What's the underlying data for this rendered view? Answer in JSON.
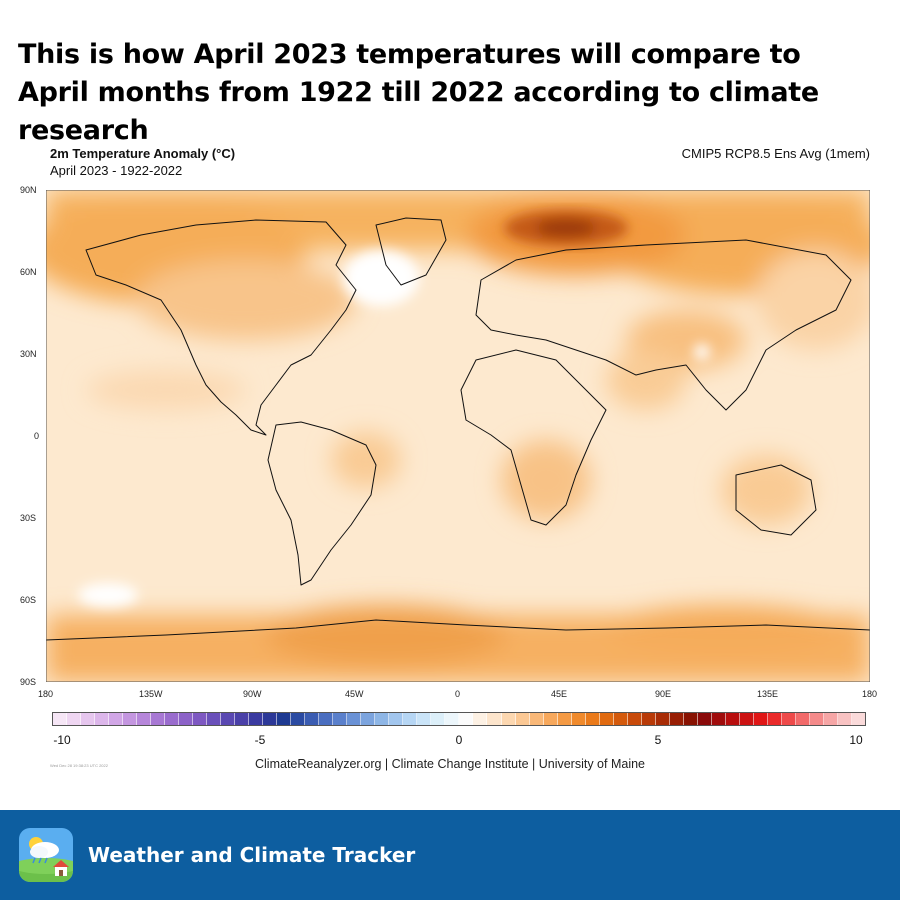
{
  "headline": "This is how April 2023 temperatures will compare to April months from 1922 till 2022 according to climate research",
  "map": {
    "title": "2m Temperature Anomaly (°C)",
    "subtitle": "April 2023 - 1922-2022",
    "dataset": "CMIP5 RCP8.5 Ens Avg (1mem)",
    "lat_labels": [
      "90N",
      "60N",
      "30N",
      "0",
      "30S",
      "60S",
      "90S"
    ],
    "lon_labels": [
      "180",
      "135W",
      "90W",
      "45W",
      "0",
      "45E",
      "90E",
      "135E",
      "180"
    ],
    "colorbar": {
      "range": [
        -10,
        10
      ],
      "ticks": [
        "-10",
        "-5",
        "0",
        "5",
        "10"
      ],
      "colors": [
        "#f6e6f6",
        "#efd6f2",
        "#e6c6ee",
        "#dcb6ea",
        "#d1a6e6",
        "#c496e0",
        "#b686da",
        "#a878d4",
        "#9a6cce",
        "#8c62c8",
        "#7e58c2",
        "#6a50ba",
        "#5a48b2",
        "#4a40a8",
        "#3a3aa0",
        "#2c3898",
        "#1e3a92",
        "#2a4aa2",
        "#3a5cb2",
        "#4a6ec0",
        "#5a80cc",
        "#6a92d6",
        "#7ca4de",
        "#8eb6e6",
        "#a2c6ee",
        "#b6d6f4",
        "#cae4f8",
        "#dceff9",
        "#ecf6fb",
        "#fbfbfb",
        "#fdf1e4",
        "#fde5cc",
        "#fcd7b0",
        "#fbc894",
        "#f9b878",
        "#f7a85c",
        "#f49a44",
        "#f08a2c",
        "#ea7a1a",
        "#e06a10",
        "#d45a0c",
        "#c84a0a",
        "#b83a08",
        "#a82c06",
        "#981e04",
        "#881202",
        "#8a0a0a",
        "#a00c0c",
        "#b80e0e",
        "#cc1212",
        "#e01616",
        "#ea2a2a",
        "#ee4a4a",
        "#f26a6a",
        "#f48a8a",
        "#f6a6a6",
        "#f8c2c2",
        "#fadada"
      ]
    },
    "timestamp": "Wed Dec 28 19:38:23 UTC 2022",
    "credits": "ClimateReanalyzer.org | Climate Change Institute | University of Maine"
  },
  "footer": {
    "app_name": "Weather and Climate Tracker",
    "icon": "weather-app-icon",
    "background": "#0d5ea0"
  }
}
